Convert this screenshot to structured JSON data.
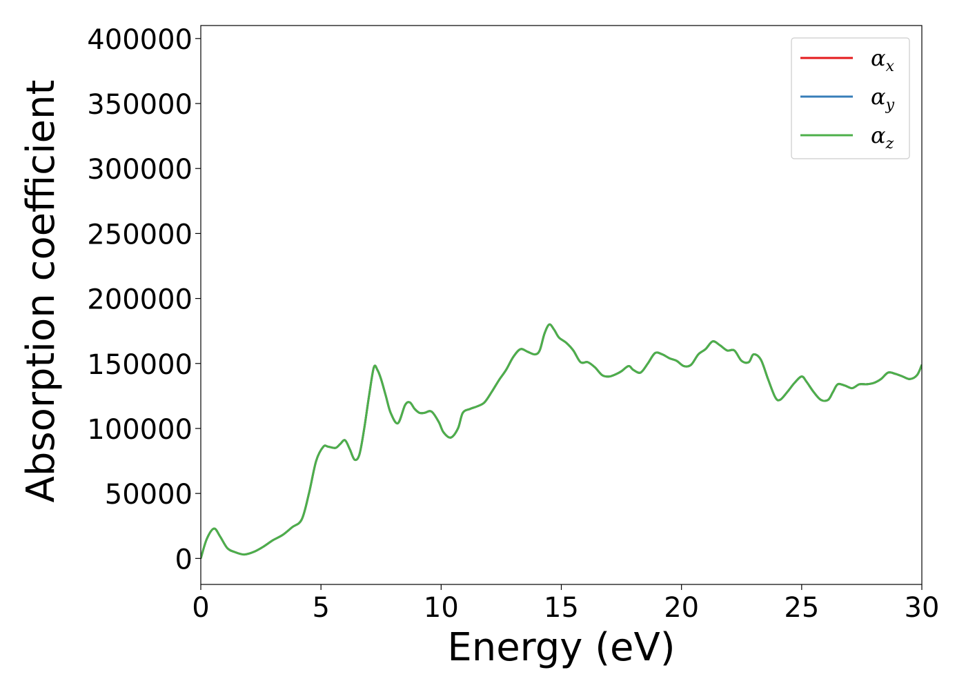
{
  "chart_data": {
    "type": "line",
    "xlabel": "Energy (eV)",
    "ylabel": "Absorption coefficient",
    "xlim": [
      0,
      30
    ],
    "ylim": [
      -20000,
      410000
    ],
    "xticks": [
      0,
      5,
      10,
      15,
      20,
      25,
      30
    ],
    "xtick_labels": [
      "0",
      "5",
      "10",
      "15",
      "20",
      "25",
      "30"
    ],
    "yticks": [
      0,
      50000,
      100000,
      150000,
      200000,
      250000,
      300000,
      350000,
      400000
    ],
    "ytick_labels": [
      "0",
      "50000",
      "100000",
      "150000",
      "200000",
      "250000",
      "300000",
      "350000",
      "400000"
    ],
    "grid": false,
    "legend_position": "top-right",
    "x": [
      0,
      0.25,
      0.55,
      0.8,
      1.1,
      1.4,
      1.8,
      2.2,
      2.6,
      3.0,
      3.4,
      3.8,
      4.2,
      4.5,
      4.8,
      5.1,
      5.3,
      5.6,
      5.8,
      6.0,
      6.2,
      6.4,
      6.6,
      6.8,
      7.0,
      7.2,
      7.35,
      7.5,
      7.7,
      7.9,
      8.2,
      8.5,
      8.7,
      8.9,
      9.1,
      9.3,
      9.6,
      9.9,
      10.1,
      10.4,
      10.7,
      10.9,
      11.2,
      11.5,
      11.8,
      12.1,
      12.4,
      12.7,
      13.0,
      13.3,
      13.6,
      13.9,
      14.1,
      14.3,
      14.5,
      14.7,
      14.9,
      15.2,
      15.5,
      15.8,
      16.1,
      16.4,
      16.7,
      17.0,
      17.3,
      17.5,
      17.8,
      18.0,
      18.3,
      18.6,
      18.9,
      19.2,
      19.5,
      19.8,
      20.1,
      20.4,
      20.7,
      21.0,
      21.3,
      21.6,
      21.9,
      22.2,
      22.5,
      22.8,
      23.0,
      23.3,
      23.6,
      23.9,
      24.1,
      24.4,
      24.7,
      25.0,
      25.2,
      25.5,
      25.8,
      26.1,
      26.3,
      26.5,
      26.8,
      27.1,
      27.4,
      27.7,
      28.0,
      28.3,
      28.6,
      28.9,
      29.2,
      29.5,
      29.8,
      30.0
    ],
    "series": [
      {
        "name": "α_x",
        "color": "#e41a1c",
        "y": [
          0,
          15000,
          23000,
          17000,
          8000,
          5000,
          3000,
          5000,
          9000,
          14000,
          18000,
          24000,
          30000,
          50000,
          75000,
          86000,
          86000,
          85000,
          88000,
          91000,
          84000,
          76000,
          80000,
          100000,
          125000,
          147000,
          145000,
          138000,
          125000,
          112000,
          104000,
          118000,
          120000,
          115000,
          112000,
          112000,
          113000,
          105000,
          97000,
          93000,
          100000,
          112000,
          115000,
          117000,
          120000,
          128000,
          137000,
          145000,
          155000,
          161000,
          159000,
          157000,
          160000,
          173000,
          180000,
          176000,
          170000,
          166000,
          160000,
          151000,
          151000,
          147000,
          141000,
          140000,
          142000,
          144000,
          148000,
          145000,
          143000,
          150000,
          158000,
          157000,
          154000,
          152000,
          148000,
          149000,
          157000,
          161000,
          167000,
          164000,
          160000,
          160000,
          152000,
          151000,
          157000,
          153000,
          138000,
          124000,
          122000,
          128000,
          135000,
          140000,
          136000,
          128000,
          122000,
          122000,
          128000,
          134000,
          133000,
          131000,
          134000,
          134000,
          135000,
          138000,
          143000,
          142000,
          140000,
          138000,
          141000,
          149000
        ]
      },
      {
        "name": "α_y",
        "color": "#377eb8",
        "y": [
          0,
          15000,
          23000,
          17000,
          8000,
          5000,
          3000,
          5000,
          9000,
          14000,
          18000,
          24000,
          30000,
          50000,
          75000,
          86000,
          86000,
          85000,
          88000,
          91000,
          84000,
          76000,
          80000,
          100000,
          125000,
          147000,
          145000,
          138000,
          125000,
          112000,
          104000,
          118000,
          120000,
          115000,
          112000,
          112000,
          113000,
          105000,
          97000,
          93000,
          100000,
          112000,
          115000,
          117000,
          120000,
          128000,
          137000,
          145000,
          155000,
          161000,
          159000,
          157000,
          160000,
          173000,
          180000,
          176000,
          170000,
          166000,
          160000,
          151000,
          151000,
          147000,
          141000,
          140000,
          142000,
          144000,
          148000,
          145000,
          143000,
          150000,
          158000,
          157000,
          154000,
          152000,
          148000,
          149000,
          157000,
          161000,
          167000,
          164000,
          160000,
          160000,
          152000,
          151000,
          157000,
          153000,
          138000,
          124000,
          122000,
          128000,
          135000,
          140000,
          136000,
          128000,
          122000,
          122000,
          128000,
          134000,
          133000,
          131000,
          134000,
          134000,
          135000,
          138000,
          143000,
          142000,
          140000,
          138000,
          141000,
          149000
        ]
      },
      {
        "name": "α_z",
        "color": "#4daf4a",
        "y": [
          0,
          15000,
          23000,
          17000,
          8000,
          5000,
          3000,
          5000,
          9000,
          14000,
          18000,
          24000,
          30000,
          50000,
          75000,
          86000,
          86000,
          85000,
          88000,
          91000,
          84000,
          76000,
          80000,
          100000,
          125000,
          147000,
          145000,
          138000,
          125000,
          112000,
          104000,
          118000,
          120000,
          115000,
          112000,
          112000,
          113000,
          105000,
          97000,
          93000,
          100000,
          112000,
          115000,
          117000,
          120000,
          128000,
          137000,
          145000,
          155000,
          161000,
          159000,
          157000,
          160000,
          173000,
          180000,
          176000,
          170000,
          166000,
          160000,
          151000,
          151000,
          147000,
          141000,
          140000,
          142000,
          144000,
          148000,
          145000,
          143000,
          150000,
          158000,
          157000,
          154000,
          152000,
          148000,
          149000,
          157000,
          161000,
          167000,
          164000,
          160000,
          160000,
          152000,
          151000,
          157000,
          153000,
          138000,
          124000,
          122000,
          128000,
          135000,
          140000,
          136000,
          128000,
          122000,
          122000,
          128000,
          134000,
          133000,
          131000,
          134000,
          134000,
          135000,
          138000,
          143000,
          142000,
          140000,
          138000,
          141000,
          149000
        ]
      }
    ],
    "legend": [
      {
        "symbol": "α",
        "subscript": "x",
        "color": "#e41a1c"
      },
      {
        "symbol": "α",
        "subscript": "y",
        "color": "#377eb8"
      },
      {
        "symbol": "α",
        "subscript": "z",
        "color": "#4daf4a"
      }
    ]
  }
}
